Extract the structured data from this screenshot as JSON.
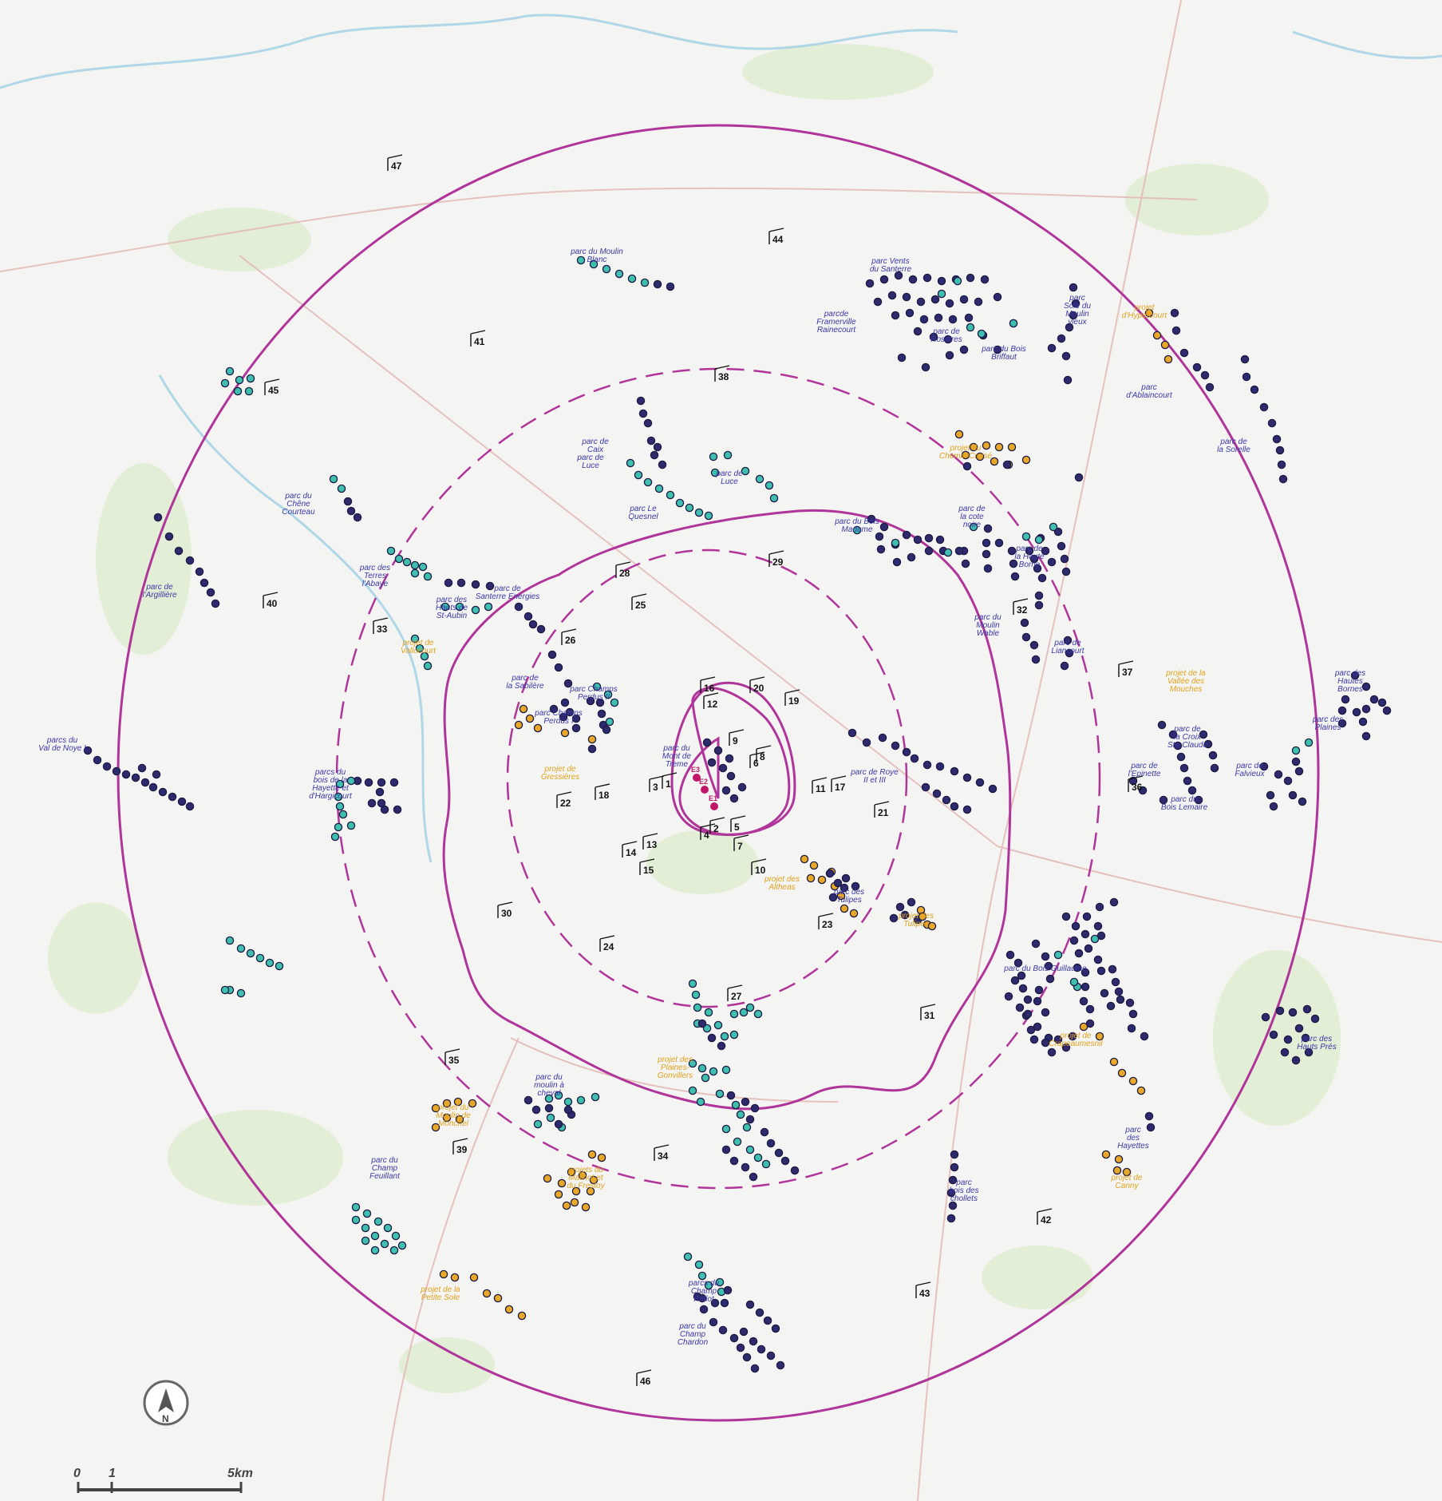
{
  "colors": {
    "background": "#f4f4f2",
    "circle": "#b0359a",
    "parc_existing": "#2d2a6e",
    "parc_other": "#3fbfb0",
    "projet": "#e8a82a",
    "eolienne_project": "#c0176a",
    "label_parc": "#3a37a5",
    "label_projet": "#e0a21e"
  },
  "icons": {
    "north_arrow": "north-arrow-icon"
  },
  "scale_bar": {
    "label_zero": "0",
    "label_one": "1",
    "label_end": "5km"
  },
  "north_arrow_label": "N",
  "eoliennes_projet": [
    {
      "label": "E3"
    },
    {
      "label": "E2"
    },
    {
      "label": "E1"
    }
  ],
  "labels_parc": [
    {
      "text": [
        "parc du Moulin",
        "Blanc"
      ]
    },
    {
      "text": [
        "parc Vents",
        "du Santerre"
      ]
    },
    {
      "text": [
        "parcde",
        "Framerville",
        "Rainecourt"
      ]
    },
    {
      "text": [
        "parc de",
        "Rosières"
      ]
    },
    {
      "text": [
        "parc",
        "Sole du",
        "Moulin",
        "vieux"
      ]
    },
    {
      "text": [
        "parc du Bois",
        "Briffaut"
      ]
    },
    {
      "text": [
        "parc",
        "d'Ablaincourt"
      ]
    },
    {
      "text": [
        "parc de",
        "la Sorelle"
      ]
    },
    {
      "text": [
        "parc de",
        "Caix"
      ]
    },
    {
      "text": [
        "parc de",
        "Luce"
      ]
    },
    {
      "text": [
        "parc de",
        "Luce"
      ]
    },
    {
      "text": [
        "parc Le",
        "Quesnel"
      ]
    },
    {
      "text": [
        "parc du",
        "Chêne",
        "Courteau"
      ]
    },
    {
      "text": [
        "parc de",
        "l'Argillière"
      ]
    },
    {
      "text": [
        "parc des",
        "Terres",
        "l'Abaye"
      ]
    },
    {
      "text": [
        "parc de",
        "Santerre Energies"
      ]
    },
    {
      "text": [
        "parc des",
        "Hauts de",
        "St-Aubin"
      ]
    },
    {
      "text": [
        "parc du Bois",
        "Madame"
      ]
    },
    {
      "text": [
        "parc de",
        "la cote",
        "noire"
      ]
    },
    {
      "text": [
        "parc de",
        "la Haute",
        "Borne"
      ]
    },
    {
      "text": [
        "parc du",
        "Moulin",
        "Wable"
      ]
    },
    {
      "text": [
        "parc de",
        "Liancourt"
      ]
    },
    {
      "text": [
        "parc de",
        "la Sabilère"
      ]
    },
    {
      "text": [
        "parc Champs",
        "Perdus II"
      ]
    },
    {
      "text": [
        "parc Champs",
        "Perdus I"
      ]
    },
    {
      "text": [
        "parc du",
        "Mont de",
        "Treme"
      ]
    },
    {
      "text": [
        "parc de Roye",
        "II et III"
      ]
    },
    {
      "text": [
        "parcs du",
        "Val de Noye I"
      ]
    },
    {
      "text": [
        "parcs du",
        "bois de la",
        "Hayette et",
        "d'Hargicourt"
      ]
    },
    {
      "text": [
        "parc des",
        "Tulipes"
      ]
    },
    {
      "text": [
        "parc du Bois Guillaume"
      ]
    },
    {
      "text": [
        "parc des",
        "Hautes",
        "Bornes"
      ]
    },
    {
      "text": [
        "parc des",
        "Plaines"
      ]
    },
    {
      "text": [
        "parc de",
        "la Croix",
        "Ste-Claude"
      ]
    },
    {
      "text": [
        "parc de",
        "l'Epinette"
      ]
    },
    {
      "text": [
        "parc du",
        "Bois Lemaire"
      ]
    },
    {
      "text": [
        "parc de",
        "Falvieux"
      ]
    },
    {
      "text": [
        "parc des",
        "Hauts Prés"
      ]
    },
    {
      "text": [
        "parc du",
        "moulin à",
        "cheval"
      ]
    },
    {
      "text": [
        "parc du",
        "Champ",
        "Feuillant"
      ]
    },
    {
      "text": [
        "parc",
        "bois des",
        "chollets"
      ]
    },
    {
      "text": [
        "parc",
        "des",
        "Hayettes"
      ]
    },
    {
      "text": [
        "parcs du",
        "Champ",
        "Rollot"
      ]
    },
    {
      "text": [
        "parc du",
        "Champ",
        "Chardon"
      ]
    }
  ],
  "labels_projet": [
    {
      "text": [
        "projet",
        "d'Hypercourt"
      ]
    },
    {
      "text": [
        "projet du",
        "Chemin Croisé"
      ]
    },
    {
      "text": [
        "projet de",
        "Vallocourt"
      ]
    },
    {
      "text": [
        "projet de",
        "Gressières"
      ]
    },
    {
      "text": [
        "projet de la",
        "Vallée des",
        "Mouches"
      ]
    },
    {
      "text": [
        "projet des",
        "Altheas"
      ]
    },
    {
      "text": [
        "projet des",
        "Tulipes"
      ]
    },
    {
      "text": [
        "projet de",
        "Crapeaumesnil"
      ]
    },
    {
      "text": [
        "projet des",
        "Plaines-",
        "Gonvillers"
      ]
    },
    {
      "text": [
        "projet du",
        "Moulin de",
        "Monchel"
      ]
    },
    {
      "text": [
        "projets du",
        "Malinot et",
        "du Frestoy"
      ]
    },
    {
      "text": [
        "projet de",
        "Canny"
      ]
    },
    {
      "text": [
        "projet de la",
        "Petite Sole"
      ]
    }
  ],
  "viewpoints": [
    "1",
    "2",
    "3",
    "4",
    "5",
    "6",
    "7",
    "8",
    "9",
    "10",
    "11",
    "12",
    "13",
    "14",
    "15",
    "16",
    "17",
    "18",
    "19",
    "20",
    "21",
    "22",
    "23",
    "24",
    "25",
    "26",
    "27",
    "28",
    "29",
    "30",
    "31",
    "32",
    "33",
    "34",
    "35",
    "36",
    "37",
    "38",
    "39",
    "40",
    "41",
    "42",
    "43",
    "44",
    "45",
    "46",
    "47"
  ]
}
